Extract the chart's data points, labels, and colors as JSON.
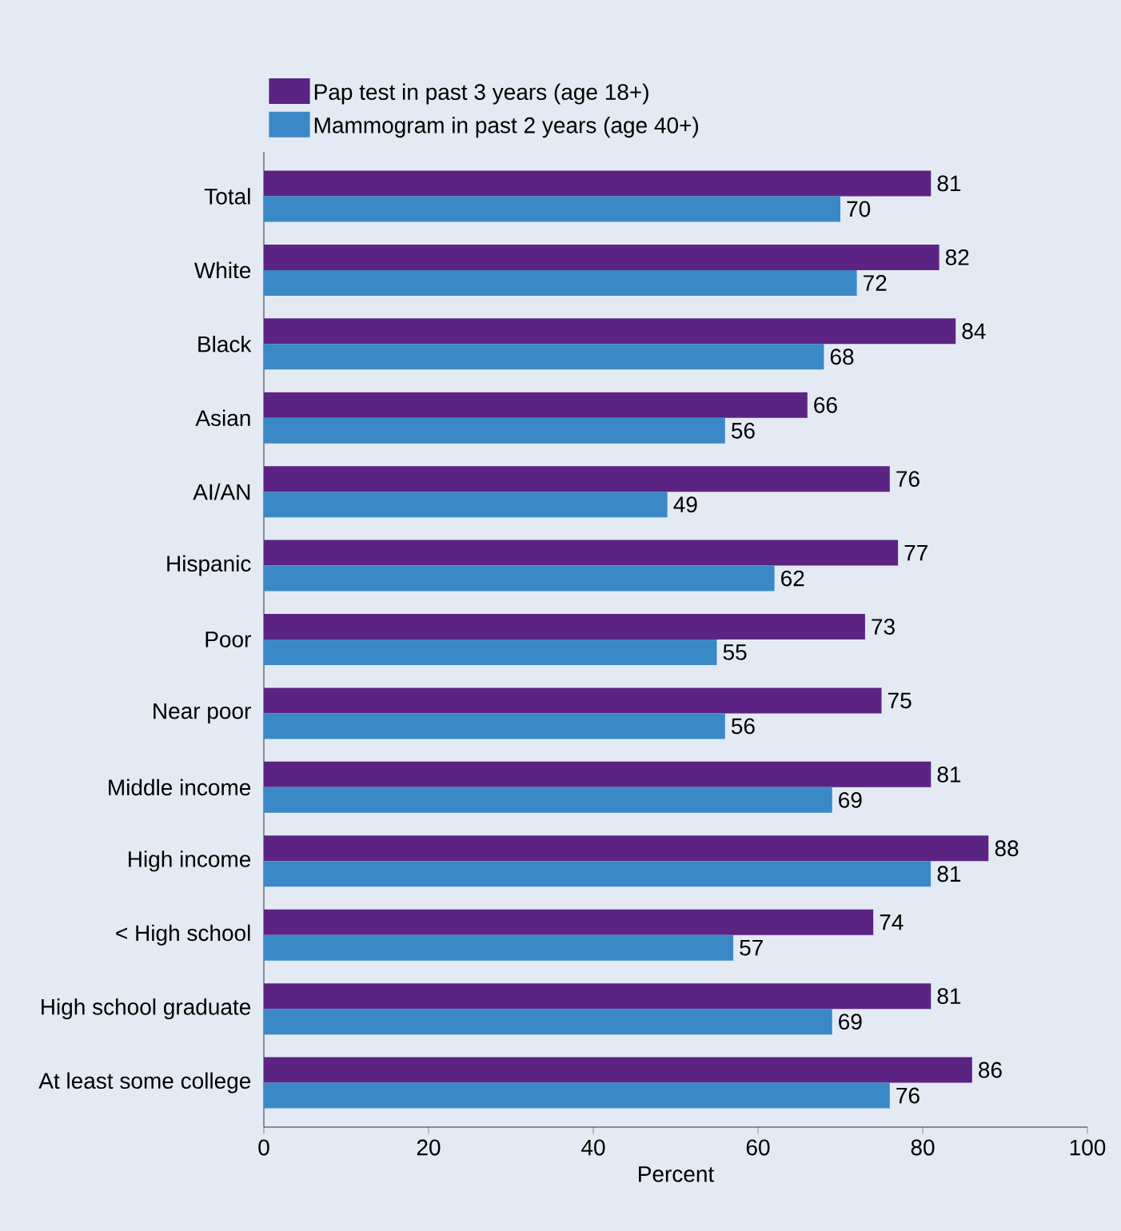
{
  "chart_data": {
    "type": "bar",
    "orientation": "horizontal",
    "xlabel": "Percent",
    "categories": [
      "Total",
      "White",
      "Black",
      "Asian",
      "AI/AN",
      "Hispanic",
      "Poor",
      "Near poor",
      "Middle income",
      "High income",
      "< High school",
      "High school graduate",
      "At least some college"
    ],
    "series": [
      {
        "name": "Pap test in past 3 years (age 18+)",
        "color": "#5b2483",
        "values": [
          81,
          82,
          84,
          66,
          76,
          77,
          73,
          75,
          81,
          88,
          74,
          81,
          86
        ]
      },
      {
        "name": "Mammogram in past 2 years (age 40+)",
        "color": "#3a89c6",
        "values": [
          70,
          72,
          68,
          56,
          49,
          62,
          55,
          56,
          69,
          81,
          57,
          69,
          76
        ]
      }
    ],
    "xlim": [
      0,
      100
    ],
    "xticks": [
      0,
      20,
      40,
      60,
      80,
      100
    ],
    "data_labels": true,
    "legend": "top left",
    "grid": false
  }
}
